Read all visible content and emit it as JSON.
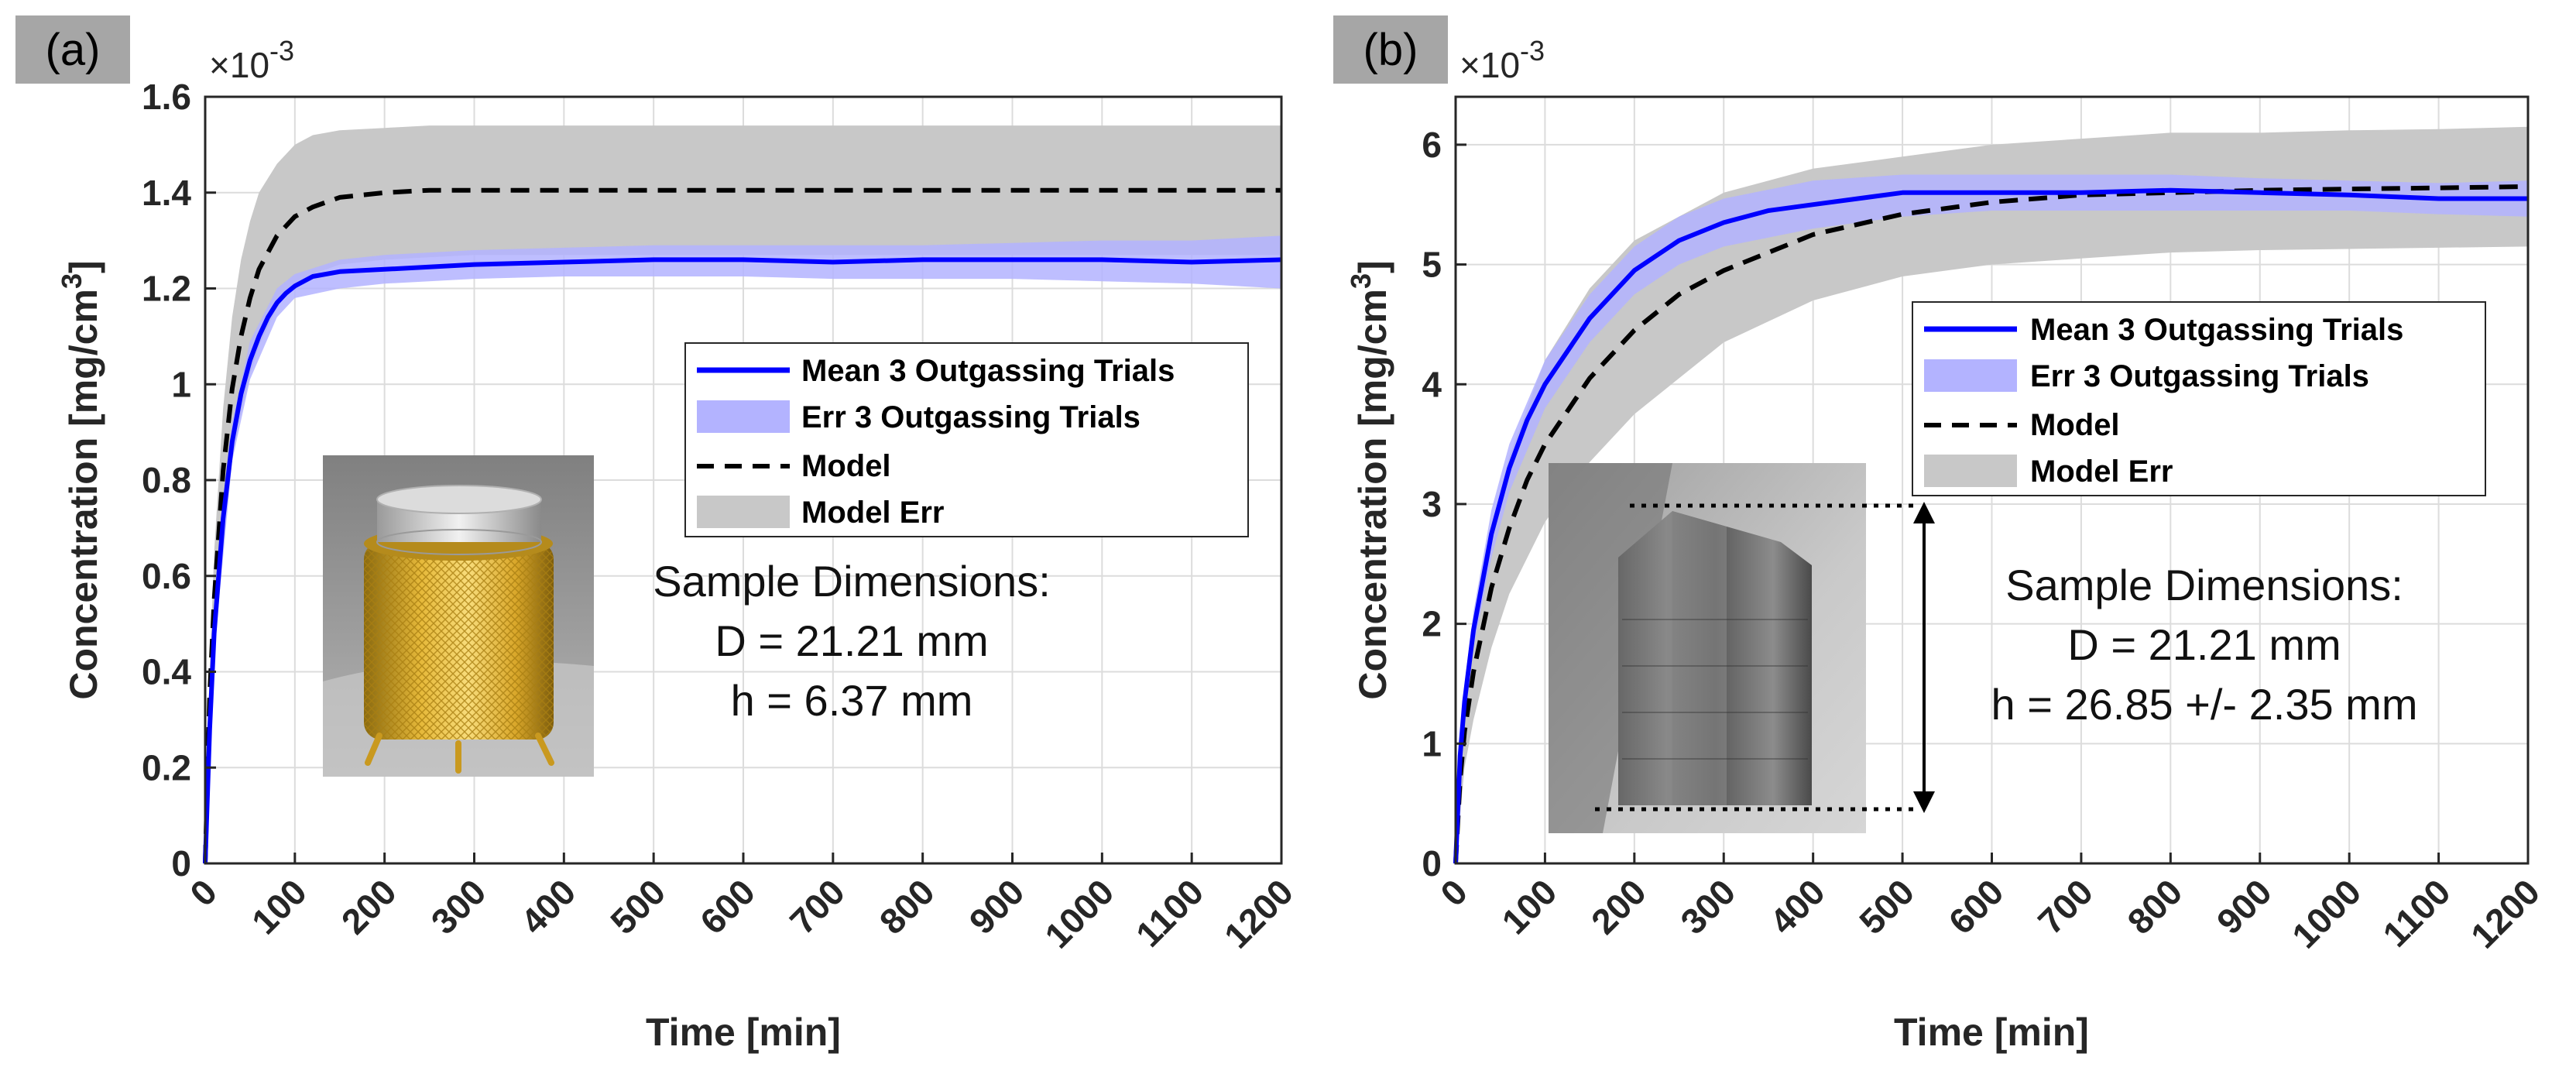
{
  "chart_data": [
    {
      "panel": "(a)",
      "type": "line",
      "xlabel": "Time [min]",
      "ylabel": "Concentration [mg/cm³]",
      "ylabel_main": "Concentration [mg/cm",
      "ylabel_sup": "3",
      "ylabel_end": "]",
      "multiplier": "×10",
      "multiplier_exp": "-3",
      "xlim": [
        0,
        1200
      ],
      "ylim": [
        0,
        1.6
      ],
      "xticks": [
        0,
        100,
        200,
        300,
        400,
        500,
        600,
        700,
        800,
        900,
        1000,
        1100,
        1200
      ],
      "yticks": [
        0,
        0.2,
        0.4,
        0.6,
        0.8,
        1,
        1.2,
        1.4,
        1.6
      ],
      "ytick_labels": [
        "0",
        "0.2",
        "0.4",
        "0.6",
        "0.8",
        "1",
        "1.2",
        "1.4",
        "1.6"
      ],
      "grid": true,
      "legend_position": "center-right",
      "legend": [
        "Mean 3 Outgassing Trials",
        "Err 3 Outgassing Trials",
        "Model",
        "Model Err"
      ],
      "series": [
        {
          "name": "Mean 3 Outgassing Trials",
          "style": "solid",
          "color": "#0000ff",
          "x": [
            0,
            5,
            10,
            20,
            30,
            40,
            50,
            60,
            70,
            80,
            90,
            100,
            120,
            150,
            200,
            300,
            400,
            500,
            600,
            700,
            800,
            900,
            1000,
            1100,
            1200
          ],
          "y": [
            0,
            0.28,
            0.48,
            0.72,
            0.88,
            0.98,
            1.05,
            1.1,
            1.14,
            1.17,
            1.19,
            1.205,
            1.225,
            1.235,
            1.24,
            1.25,
            1.255,
            1.26,
            1.26,
            1.255,
            1.26,
            1.26,
            1.26,
            1.255,
            1.26
          ]
        },
        {
          "name": "Err 3 Outgassing Trials",
          "style": "band",
          "color": "#b3b3ff",
          "x": [
            0,
            10,
            30,
            50,
            80,
            100,
            150,
            200,
            300,
            400,
            500,
            600,
            700,
            800,
            900,
            1000,
            1100,
            1200
          ],
          "upper": [
            0,
            0.52,
            0.92,
            1.09,
            1.2,
            1.23,
            1.26,
            1.27,
            1.28,
            1.285,
            1.29,
            1.29,
            1.29,
            1.29,
            1.295,
            1.3,
            1.3,
            1.31
          ],
          "lower": [
            0,
            0.44,
            0.84,
            1.01,
            1.14,
            1.18,
            1.2,
            1.21,
            1.22,
            1.225,
            1.225,
            1.225,
            1.22,
            1.22,
            1.22,
            1.215,
            1.21,
            1.2
          ]
        },
        {
          "name": "Model",
          "style": "dashed",
          "color": "#000000",
          "x": [
            0,
            5,
            10,
            20,
            30,
            40,
            50,
            60,
            80,
            100,
            120,
            150,
            200,
            250,
            300,
            400,
            500,
            600,
            800,
            1000,
            1200
          ],
          "y": [
            0,
            0.35,
            0.55,
            0.82,
            0.99,
            1.1,
            1.18,
            1.24,
            1.31,
            1.35,
            1.37,
            1.39,
            1.4,
            1.405,
            1.405,
            1.405,
            1.405,
            1.405,
            1.405,
            1.405,
            1.405
          ]
        },
        {
          "name": "Model Err",
          "style": "band",
          "color": "#c8c8c8",
          "x": [
            0,
            5,
            10,
            20,
            30,
            40,
            50,
            60,
            80,
            100,
            120,
            150,
            200,
            250,
            300,
            400,
            600,
            800,
            1000,
            1200
          ],
          "upper": [
            0,
            0.4,
            0.65,
            0.95,
            1.14,
            1.26,
            1.34,
            1.4,
            1.46,
            1.5,
            1.52,
            1.53,
            1.535,
            1.54,
            1.54,
            1.54,
            1.54,
            1.54,
            1.54,
            1.54
          ],
          "lower": [
            0,
            0.28,
            0.45,
            0.69,
            0.84,
            0.94,
            1.02,
            1.08,
            1.16,
            1.21,
            1.23,
            1.25,
            1.26,
            1.265,
            1.27,
            1.27,
            1.27,
            1.27,
            1.27,
            1.27
          ]
        }
      ],
      "annotation": [
        "Sample Dimensions:",
        "D = 21.21 mm",
        "h = 6.37 mm"
      ],
      "inset_image": "gold-mesh-sample-photo"
    },
    {
      "panel": "(b)",
      "type": "line",
      "xlabel": "Time [min]",
      "ylabel": "Concentration [mg/cm³]",
      "ylabel_main": "Concentration [mg/cm",
      "ylabel_sup": "3",
      "ylabel_end": "]",
      "multiplier": "×10",
      "multiplier_exp": "-3",
      "xlim": [
        0,
        1200
      ],
      "ylim": [
        0,
        6.4
      ],
      "xticks": [
        0,
        100,
        200,
        300,
        400,
        500,
        600,
        700,
        800,
        900,
        1000,
        1100,
        1200
      ],
      "yticks": [
        0,
        1,
        2,
        3,
        4,
        5,
        6
      ],
      "ytick_labels": [
        "0",
        "1",
        "2",
        "3",
        "4",
        "5",
        "6"
      ],
      "grid": true,
      "legend_position": "center-right",
      "legend": [
        "Mean 3 Outgassing Trials",
        "Err 3 Outgassing Trials",
        "Model",
        "Model Err"
      ],
      "series": [
        {
          "name": "Mean 3 Outgassing Trials",
          "style": "solid",
          "color": "#0000ff",
          "x": [
            0,
            5,
            10,
            20,
            40,
            60,
            80,
            100,
            150,
            200,
            250,
            300,
            350,
            400,
            450,
            500,
            600,
            700,
            800,
            900,
            1000,
            1100,
            1200
          ],
          "y": [
            0,
            0.9,
            1.35,
            1.95,
            2.75,
            3.3,
            3.7,
            4.0,
            4.55,
            4.95,
            5.2,
            5.35,
            5.45,
            5.5,
            5.55,
            5.6,
            5.6,
            5.6,
            5.62,
            5.6,
            5.58,
            5.55,
            5.55
          ]
        },
        {
          "name": "Err 3 Outgassing Trials",
          "style": "band",
          "color": "#b3b3ff",
          "x": [
            0,
            10,
            20,
            40,
            60,
            100,
            150,
            200,
            250,
            300,
            400,
            500,
            600,
            700,
            800,
            900,
            1000,
            1100,
            1200
          ],
          "upper": [
            0,
            1.5,
            2.1,
            2.95,
            3.5,
            4.2,
            4.75,
            5.15,
            5.4,
            5.55,
            5.7,
            5.75,
            5.75,
            5.75,
            5.75,
            5.72,
            5.7,
            5.68,
            5.7
          ],
          "lower": [
            0,
            1.2,
            1.8,
            2.55,
            3.1,
            3.8,
            4.35,
            4.75,
            5.0,
            5.15,
            5.3,
            5.4,
            5.45,
            5.45,
            5.45,
            5.45,
            5.45,
            5.42,
            5.4
          ]
        },
        {
          "name": "Model",
          "style": "dashed",
          "color": "#000000",
          "x": [
            0,
            5,
            10,
            20,
            40,
            60,
            80,
            100,
            150,
            200,
            250,
            300,
            400,
            500,
            600,
            700,
            800,
            900,
            1000,
            1100,
            1200
          ],
          "y": [
            0,
            0.7,
            1.1,
            1.6,
            2.3,
            2.8,
            3.2,
            3.5,
            4.05,
            4.45,
            4.75,
            4.95,
            5.25,
            5.42,
            5.52,
            5.58,
            5.6,
            5.62,
            5.63,
            5.64,
            5.65
          ]
        },
        {
          "name": "Model Err",
          "style": "band",
          "color": "#c8c8c8",
          "x": [
            0,
            10,
            20,
            40,
            60,
            100,
            150,
            200,
            300,
            400,
            500,
            600,
            700,
            800,
            900,
            1000,
            1100,
            1200
          ],
          "upper": [
            0,
            1.4,
            2.0,
            2.8,
            3.4,
            4.2,
            4.8,
            5.2,
            5.6,
            5.8,
            5.9,
            6.0,
            6.05,
            6.1,
            6.1,
            6.12,
            6.13,
            6.15
          ],
          "lower": [
            0,
            0.8,
            1.2,
            1.8,
            2.25,
            2.85,
            3.35,
            3.75,
            4.35,
            4.7,
            4.9,
            5.0,
            5.05,
            5.1,
            5.12,
            5.13,
            5.14,
            5.15
          ]
        }
      ],
      "annotation": [
        "Sample Dimensions:",
        "D = 21.21 mm",
        "h = 26.85 +/- 2.35 mm"
      ],
      "inset_image": "clear-cylinder-sample-photo"
    }
  ]
}
